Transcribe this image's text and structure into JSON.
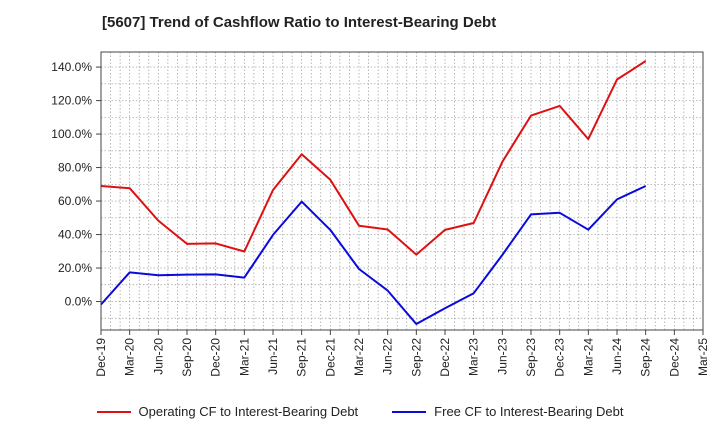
{
  "title": "[5607]  Trend of Cashflow Ratio to Interest-Bearing Debt",
  "chart_data": {
    "type": "line",
    "x": [
      "Dec-19",
      "Mar-20",
      "Jun-20",
      "Sep-20",
      "Dec-20",
      "Mar-21",
      "Jun-21",
      "Sep-21",
      "Dec-21",
      "Mar-22",
      "Jun-22",
      "Sep-22",
      "Dec-22",
      "Mar-23",
      "Jun-23",
      "Sep-23",
      "Dec-23",
      "Mar-24",
      "Jun-24",
      "Sep-24",
      "Dec-24",
      "Mar-25"
    ],
    "series": [
      {
        "name": "Operating CF to Interest-Bearing Debt",
        "color": "#dd1111",
        "values": [
          69.0,
          67.7,
          48.3,
          34.4,
          34.7,
          29.9,
          66.6,
          88.0,
          72.7,
          45.3,
          43.0,
          28.0,
          42.8,
          46.9,
          83.4,
          111.0,
          116.8,
          97.0,
          132.6,
          143.6,
          null,
          null
        ]
      },
      {
        "name": "Free CF to Interest-Bearing Debt",
        "color": "#0a0adc",
        "values": [
          -1.8,
          17.4,
          15.7,
          16.1,
          16.2,
          14.3,
          39.8,
          59.7,
          42.8,
          19.4,
          6.5,
          -13.4,
          -4.0,
          5.0,
          27.8,
          52.0,
          53.0,
          42.9,
          61.0,
          69.0,
          null,
          null
        ]
      }
    ],
    "y_ticks": [
      "0.0%",
      "20.0%",
      "40.0%",
      "60.0%",
      "80.0%",
      "100.0%",
      "120.0%",
      "140.0%"
    ],
    "ylim": [
      -17,
      149
    ],
    "grid": true,
    "legend_position": "bottom"
  }
}
